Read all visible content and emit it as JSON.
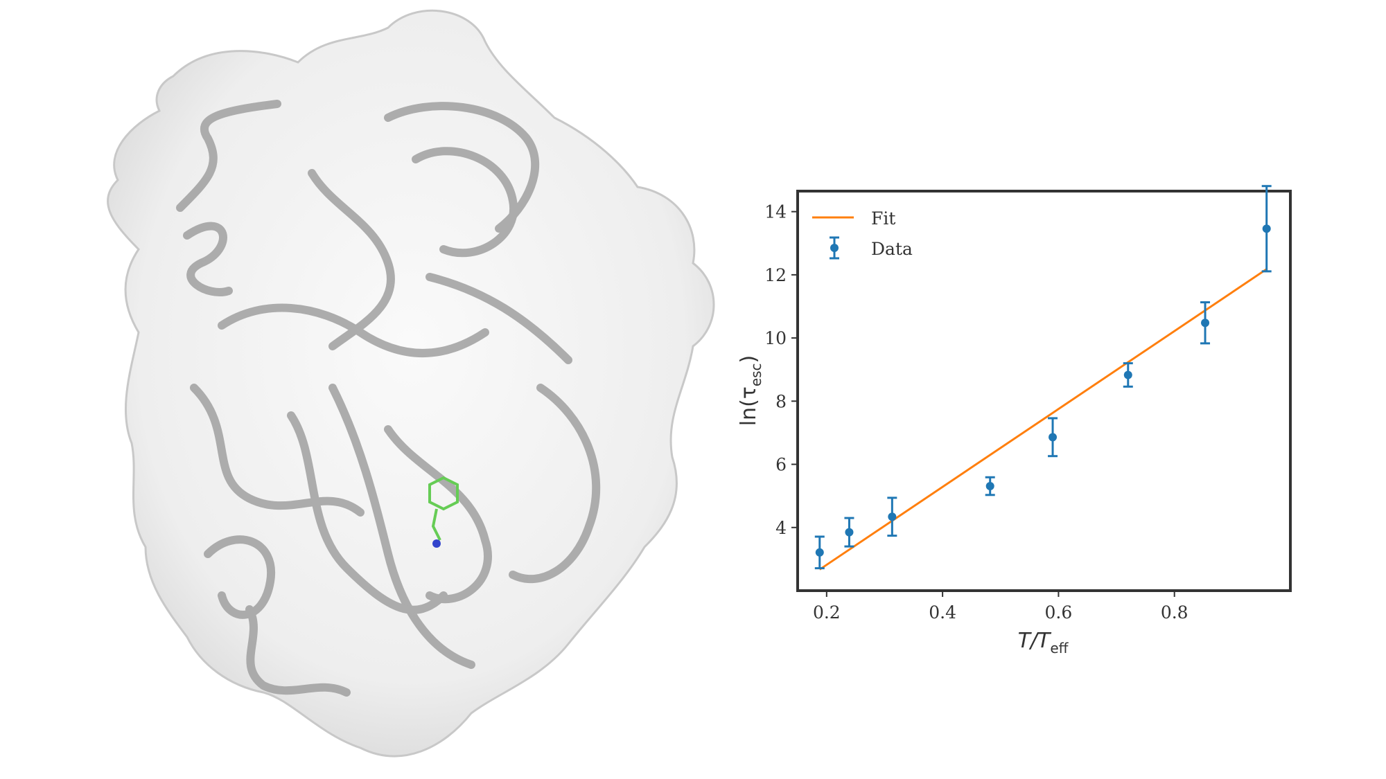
{
  "chart_data": {
    "type": "scatter",
    "title": "",
    "xlabel": "T/T_eff",
    "xlabel_main": "T/T",
    "xlabel_sub": "eff",
    "ylabel": "ln(τ_esc)",
    "ylabel_main": "ln(τ",
    "ylabel_sub": "esc",
    "ylabel_close": ")",
    "xlim": [
      0.15,
      1.0
    ],
    "ylim": [
      2.0,
      14.65
    ],
    "xticks": [
      0.2,
      0.4,
      0.6,
      0.8
    ],
    "xtick_labels": [
      "0.2",
      "0.4",
      "0.6",
      "0.8"
    ],
    "yticks": [
      4,
      6,
      8,
      10,
      12,
      14
    ],
    "ytick_labels": [
      "4",
      "6",
      "8",
      "10",
      "12",
      "14"
    ],
    "grid": false,
    "legend_position": "top-left",
    "series": [
      {
        "name": "Data",
        "kind": "errorbar",
        "color": "#1f77b4",
        "x": [
          0.188,
          0.239,
          0.313,
          0.482,
          0.59,
          0.72,
          0.853,
          0.959
        ],
        "y": [
          3.21,
          3.85,
          4.34,
          5.31,
          6.86,
          8.83,
          10.48,
          13.46
        ],
        "yerr": [
          0.5,
          0.45,
          0.6,
          0.28,
          0.6,
          0.37,
          0.65,
          1.35
        ]
      },
      {
        "name": "Fit",
        "kind": "line",
        "color": "#ff7f0e",
        "x": [
          0.188,
          0.959
        ],
        "y": [
          2.67,
          12.18
        ]
      }
    ],
    "legend": [
      "Fit",
      "Data"
    ]
  },
  "figure": {
    "protein_surface_color": "#e6e6e6",
    "ribbon_color": "#9a9a9a",
    "ligand_color": "#66cc55"
  }
}
